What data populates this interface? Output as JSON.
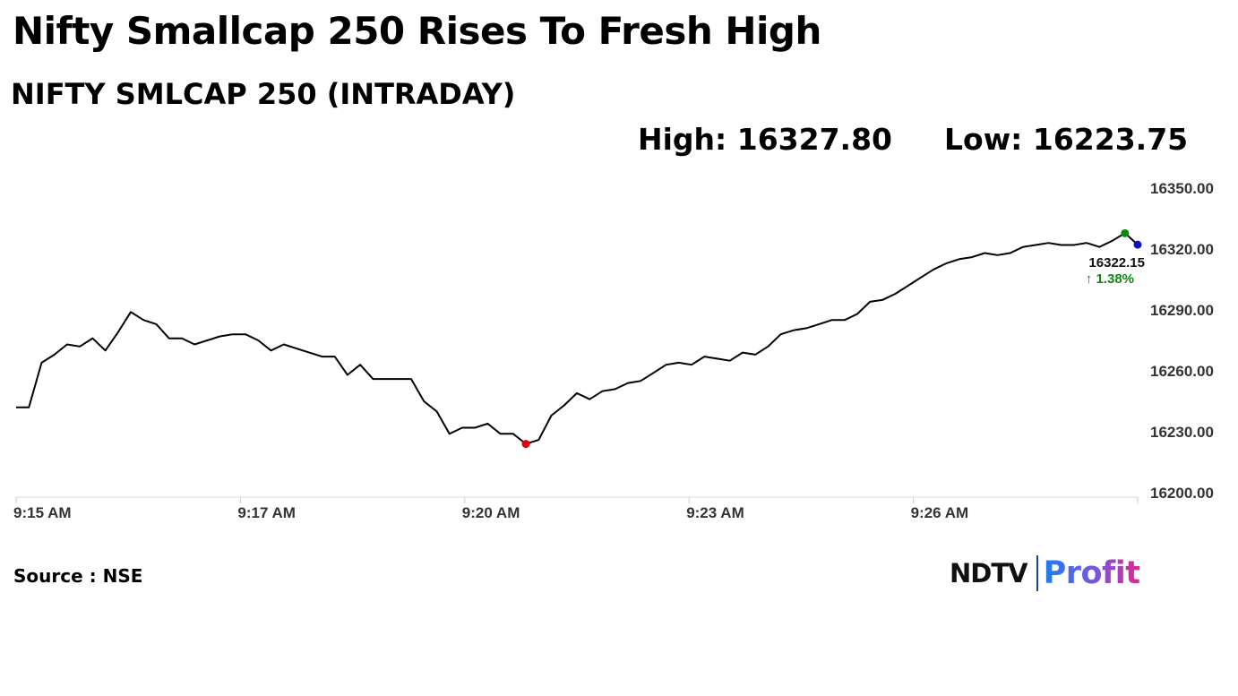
{
  "header": {
    "headline": "Nifty Smallcap 250 Rises To Fresh High",
    "subtitle": "NIFTY SMLCAP 250 (INTRADAY)"
  },
  "stats": {
    "high": "High: 16327.80",
    "low": "Low: 16223.75"
  },
  "footer": {
    "source": "Source : NSE"
  },
  "logo": {
    "ndtv": "NDTV",
    "profit": "Profit"
  },
  "chart_data": {
    "type": "line",
    "title": "NIFTY SMLCAP 250 (INTRADAY)",
    "xlabel": "",
    "ylabel": "",
    "ylim": [
      16200,
      16350
    ],
    "yticks": [
      "16350.00",
      "16320.00",
      "16290.00",
      "16260.00",
      "16230.00",
      "16200.00"
    ],
    "xticks": [
      {
        "label": "9:15 AM",
        "minute": 0
      },
      {
        "label": "9:17 AM",
        "minute": 15
      },
      {
        "label": "9:20 AM",
        "minute": 30
      },
      {
        "label": "9:23 AM",
        "minute": 45
      },
      {
        "label": "9:26 AM",
        "minute": 60
      }
    ],
    "grid": false,
    "line_color": "#000000",
    "series": [
      {
        "values": [
          16242,
          16242,
          16264,
          16268,
          16273,
          16272,
          16276,
          16270,
          16279,
          16289,
          16285,
          16283,
          16276,
          16276,
          16273,
          16275,
          16277,
          16278,
          16278,
          16275,
          16270,
          16273,
          16271,
          16269,
          16267,
          16267,
          16258,
          16263,
          16256,
          16256,
          16256,
          16256,
          16245,
          16240,
          16229,
          16232,
          16232,
          16234,
          16229,
          16229,
          16224,
          16226,
          16238,
          16243,
          16249,
          16246,
          16250,
          16251,
          16254,
          16255,
          16259,
          16263,
          16264,
          16263,
          16267,
          16266,
          16265,
          16269,
          16268,
          16272,
          16278,
          16280,
          16281,
          16283,
          16285,
          16285,
          16288,
          16294,
          16295,
          16298,
          16302,
          16306,
          16310,
          16313,
          16315,
          16316,
          16318,
          16317,
          16318,
          16321,
          16322,
          16323,
          16322,
          16322,
          16323,
          16321,
          16324,
          16327.8,
          16322.15
        ]
      }
    ],
    "markers": {
      "low_color": "#e00000",
      "high_color": "#0a8a0a",
      "last_color": "#1010c0"
    },
    "last_value": "16322.15",
    "change": "↑ 1.38%"
  }
}
